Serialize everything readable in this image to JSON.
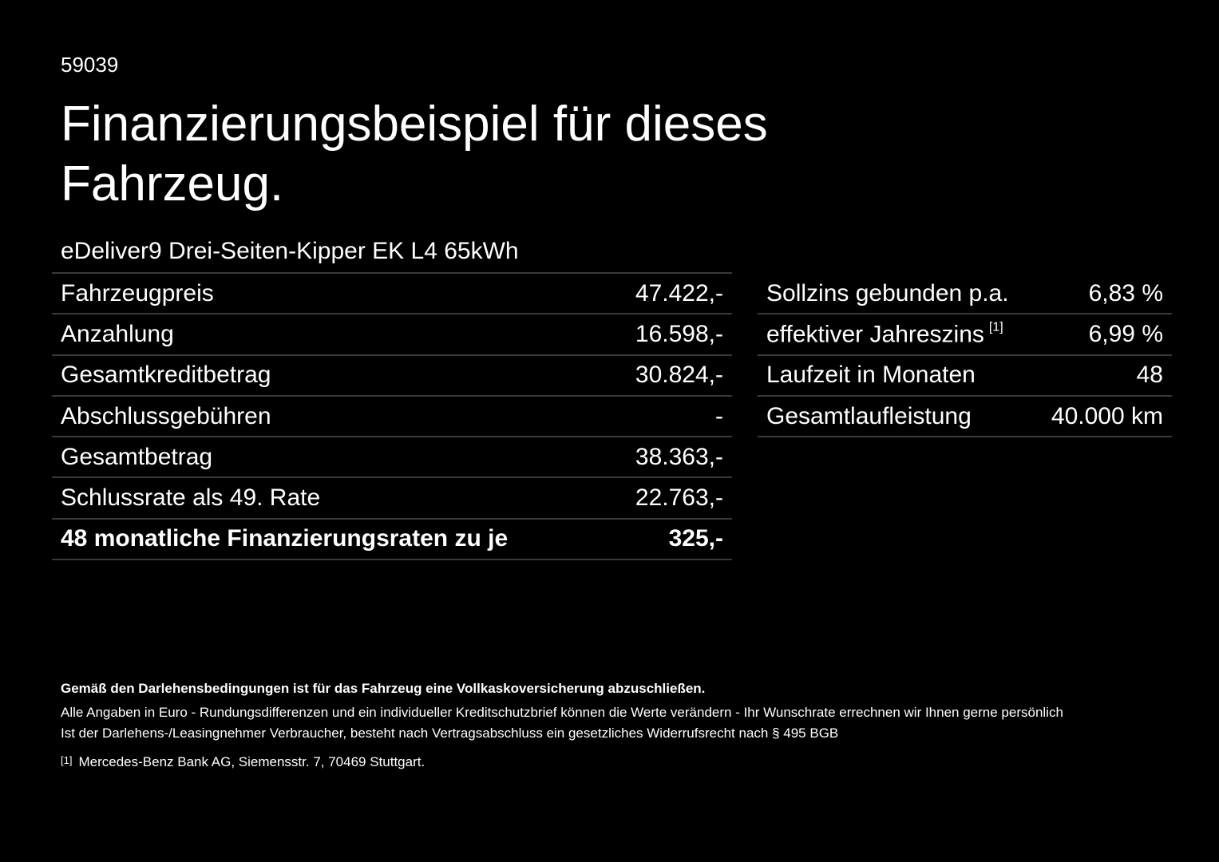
{
  "header": {
    "id": "59039",
    "title": "Finanzierungsbeispiel für dieses Fahrzeug.",
    "vehicle": "eDeliver9 Drei-Seiten-Kipper EK L4 65kWh"
  },
  "left_table": {
    "rows": [
      [
        "Fahrzeugpreis",
        "47.422,-"
      ],
      [
        "Anzahlung",
        "16.598,-"
      ],
      [
        "Gesamtkreditbetrag",
        "30.824,-"
      ],
      [
        "Abschlussgebühren",
        "-"
      ],
      [
        "Gesamtbetrag",
        "38.363,-"
      ],
      [
        "Schlussrate als 49. Rate",
        "22.763,-"
      ],
      [
        "48 monatliche Finanzierungsraten zu je",
        "325,-"
      ]
    ]
  },
  "right_table": {
    "rows": [
      [
        "Sollzins gebunden p.a.",
        "6,83 %"
      ],
      [
        "effektiver Jahreszins",
        "6,99 %",
        "[1]"
      ],
      [
        "Laufzeit in Monaten",
        "48"
      ],
      [
        "Gesamtlaufleistung",
        "40.000 km"
      ]
    ]
  },
  "footer": {
    "notice": "Gemäß den Darlehensbedingungen ist für das Fahrzeug eine Vollkaskoversicherung abzuschließen.",
    "lines": [
      "Alle Angaben in Euro - Rundungsdifferenzen und ein individueller Kreditschutzbrief können die Werte verändern - Ihr Wunschrate errechnen wir Ihnen gerne persönlich",
      "Ist der Darlehens-/Leasingnehmer Verbraucher, besteht nach Vertragsabschluss ein gesetzliches Widerrufsrecht nach § 495 BGB"
    ],
    "footnote_marker": "[1]",
    "footnote": "Mercedes-Benz Bank AG, Siemensstr. 7, 70469 Stuttgart."
  }
}
